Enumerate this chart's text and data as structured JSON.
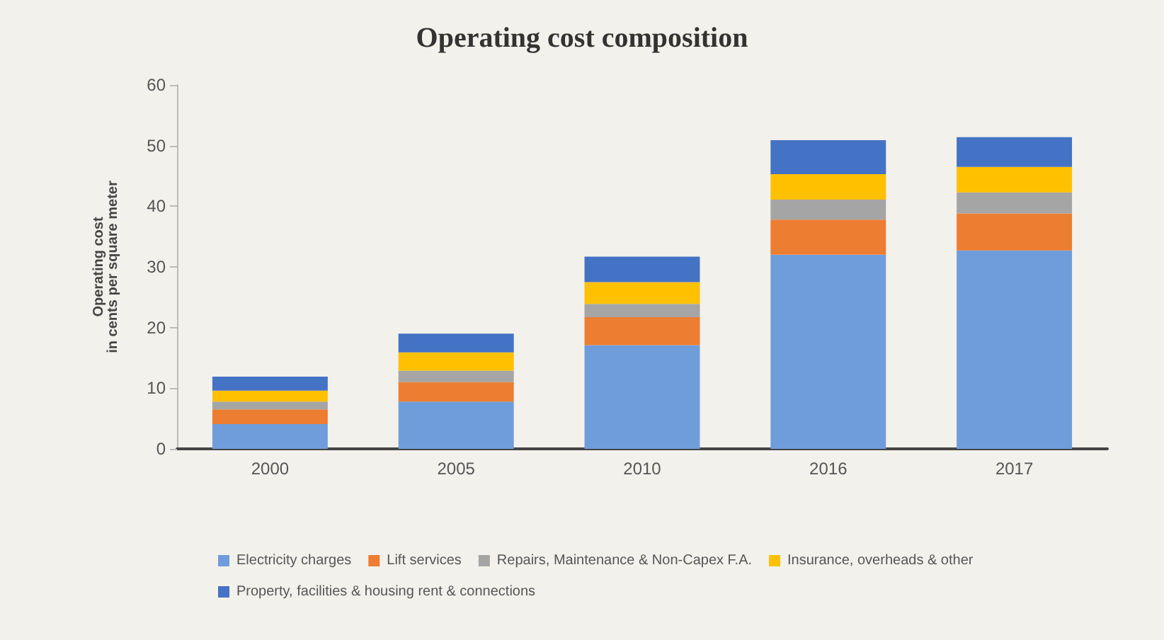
{
  "chart_data": {
    "type": "bar",
    "title": "Operating cost composition",
    "ylabel": "Operating cost\nin cents per square meter",
    "categories": [
      "2000",
      "2005",
      "2010",
      "2016",
      "2017"
    ],
    "series": [
      {
        "name": "Electricity charges",
        "color": "#6f9ddb",
        "values": [
          4.1,
          7.8,
          17.1,
          32.0,
          32.7
        ]
      },
      {
        "name": "Lift services",
        "color": "#ed7d31",
        "values": [
          2.4,
          3.2,
          4.6,
          5.8,
          6.1
        ]
      },
      {
        "name": "Repairs, Maintenance & Non-Capex F.A.",
        "color": "#a5a5a5",
        "values": [
          1.3,
          1.9,
          2.2,
          3.3,
          3.5
        ]
      },
      {
        "name": "Insurance, overheads & other",
        "color": "#ffc000",
        "values": [
          1.8,
          3.0,
          3.6,
          4.2,
          4.2
        ]
      },
      {
        "name": "Property, facilities & housing rent & connections",
        "color": "#4472c4",
        "values": [
          2.3,
          3.1,
          4.2,
          5.6,
          4.9
        ]
      }
    ],
    "stacked": true,
    "ylim": [
      0,
      60
    ],
    "yticks": [
      0,
      10,
      20,
      30,
      40,
      50,
      60
    ],
    "grid": false,
    "legend": "bottom"
  }
}
